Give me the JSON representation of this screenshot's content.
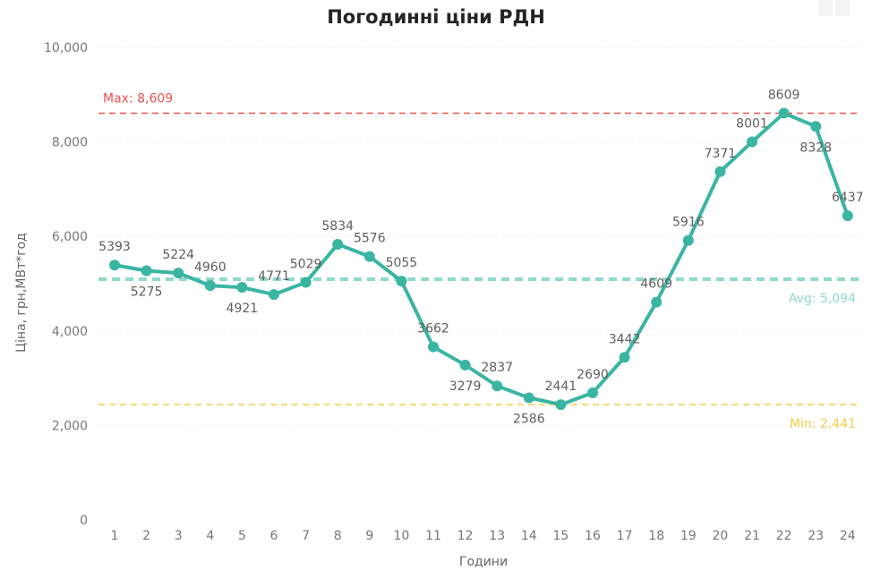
{
  "chart_data": {
    "type": "line",
    "title": "Погодинні ціни РДН",
    "xlabel": "Години",
    "ylabel": "Ціна, грн,МВт*год",
    "categories": [
      "1",
      "2",
      "3",
      "4",
      "5",
      "6",
      "7",
      "8",
      "9",
      "10",
      "11",
      "12",
      "13",
      "14",
      "15",
      "16",
      "17",
      "18",
      "19",
      "20",
      "21",
      "22",
      "23",
      "24"
    ],
    "values": [
      5393,
      5275,
      5224,
      4960,
      4921,
      4771,
      5029,
      5834,
      5576,
      5055,
      3662,
      3279,
      2837,
      2586,
      2441,
      2690,
      3442,
      4609,
      5916,
      7371,
      8001,
      8609,
      8328,
      6437
    ],
    "data_labels": [
      "5393",
      "5275",
      "5224",
      "4960",
      "4921",
      "4771",
      "5029",
      "5834",
      "5576",
      "5055",
      "3662",
      "3279",
      "2837",
      "2586",
      "2441",
      "2690",
      "3442",
      "4609",
      "5916",
      "7371",
      "8001",
      "8609",
      "8328",
      "6437"
    ],
    "ylim": [
      0,
      10000
    ],
    "yticks": [
      0,
      2000,
      4000,
      6000,
      8000,
      10000
    ],
    "ytick_labels": [
      "0",
      "2,000",
      "4,000",
      "6,000",
      "8,000",
      "10,000"
    ],
    "grid": true,
    "reference_lines": [
      {
        "label": "Max: 8,609",
        "value": 8609,
        "color": "#e8524f",
        "style": "dashed"
      },
      {
        "label": "Avg: 5,094",
        "value": 5094,
        "color": "#8fd9cf",
        "style": "dashed-thick"
      },
      {
        "label": "Min: 2,441",
        "value": 2441,
        "color": "#f2cd4c",
        "style": "dashed"
      }
    ],
    "line_color": "#3ab5a2"
  }
}
